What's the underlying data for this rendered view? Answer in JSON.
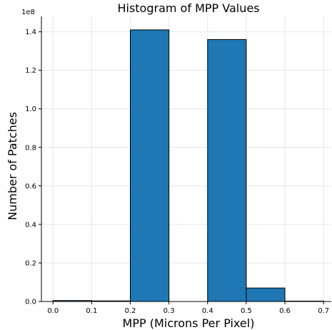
{
  "chart_data": {
    "type": "bar",
    "title": "Histogram of MPP Values",
    "xlabel": "MPP (Microns Per Pixel)",
    "ylabel": "Number of Patches",
    "y_offset_label": "1e8",
    "xlim": [
      -0.03,
      0.72
    ],
    "ylim": [
      0,
      1.48
    ],
    "y_scale": 100000000,
    "grid": true,
    "bar_color": "#1f77b4",
    "edge_color": "#000000",
    "bins": [
      {
        "x0": 0.0,
        "x1": 0.1,
        "value": 0.005
      },
      {
        "x0": 0.1,
        "x1": 0.2,
        "value": 0.003
      },
      {
        "x0": 0.2,
        "x1": 0.3,
        "value": 1.41
      },
      {
        "x0": 0.3,
        "x1": 0.4,
        "value": 0.0
      },
      {
        "x0": 0.4,
        "x1": 0.5,
        "value": 1.36
      },
      {
        "x0": 0.5,
        "x1": 0.6,
        "value": 0.07
      },
      {
        "x0": 0.6,
        "x1": 0.7,
        "value": 0.002
      }
    ],
    "x_ticks": [
      "0.0",
      "0.1",
      "0.2",
      "0.3",
      "0.4",
      "0.5",
      "0.6",
      "0.7"
    ],
    "y_ticks": [
      "0.0",
      "0.2",
      "0.4",
      "0.6",
      "0.8",
      "1.0",
      "1.2",
      "1.4"
    ]
  }
}
